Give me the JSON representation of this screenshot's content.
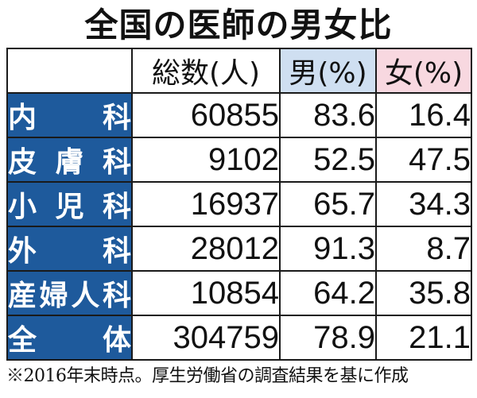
{
  "title": "全国の医師の男女比",
  "table": {
    "columns": {
      "total": "総数(人)",
      "male": "男(%)",
      "female": "女(%)"
    },
    "rows": [
      {
        "label": "内　科",
        "total": "60855",
        "male": "83.6",
        "female": "16.4"
      },
      {
        "label": "皮膚科",
        "total": "9102",
        "male": "52.5",
        "female": "47.5"
      },
      {
        "label": "小児科",
        "total": "16937",
        "male": "65.7",
        "female": "34.3"
      },
      {
        "label": "外　科",
        "total": "28012",
        "male": "91.3",
        "female": "8.7"
      },
      {
        "label": "産婦人科",
        "total": "10854",
        "male": "64.2",
        "female": "35.8"
      },
      {
        "label": "全　体",
        "total": "304759",
        "male": "78.9",
        "female": "21.1"
      }
    ]
  },
  "colors": {
    "row_label_bg": "#1e5a9c",
    "male_header_bg": "#cfdff1",
    "female_header_bg": "#f8d8e0"
  },
  "note": "※2016年末時点。厚生労働省の調査結果を基に作成"
}
